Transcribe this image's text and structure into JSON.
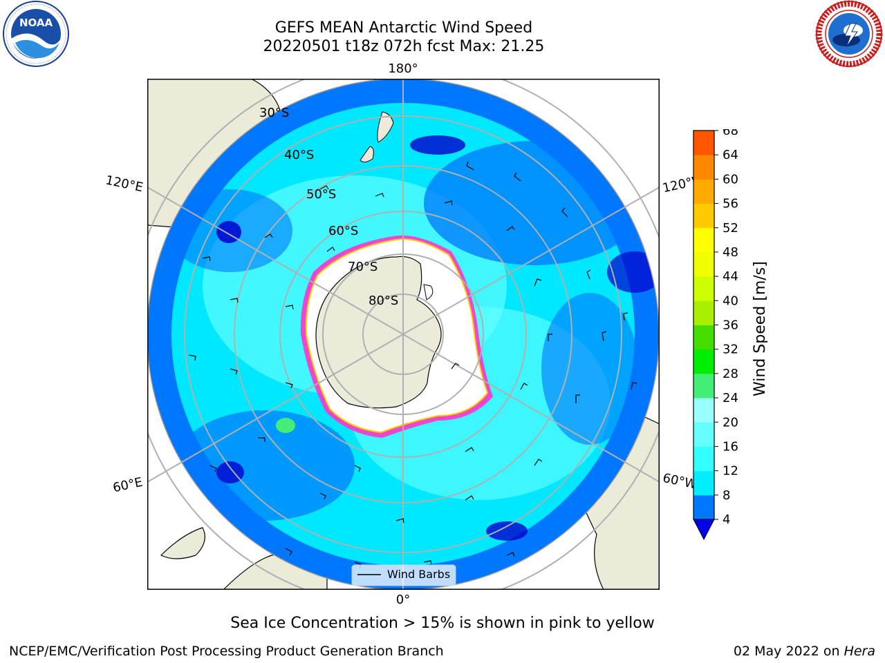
{
  "header": {
    "title_line1": "GEFS MEAN Antarctic Wind Speed",
    "title_line2": "20220501 t18z 072h fcst   Max: 21.25"
  },
  "logos": {
    "left": {
      "icon": "noaa-logo",
      "text": "NOAA",
      "ring_text": "NATIONAL OCEANIC AND ATMOSPHERIC ADMINISTRATION · U.S. DEPARTMENT OF COMMERCE"
    },
    "right": {
      "icon": "nws-logo",
      "ring_text": "NATIONAL WEATHER SERVICE"
    }
  },
  "map": {
    "projection": "south-polar-stereographic",
    "longitude_labels": {
      "top": "180°",
      "bottom": "0°",
      "upper_left": "120°E",
      "upper_right": "120°W",
      "lower_left": "60°E",
      "lower_right": "60°W"
    },
    "latitude_labels": [
      "30°S",
      "40°S",
      "50°S",
      "60°S",
      "70°S",
      "80°S"
    ],
    "legend_label": "Wind Barbs",
    "colors": {
      "land": "#ecebd9",
      "ocean_low": "#0077ff",
      "ocean_mid": "#00f0ff",
      "ocean_high": "#66ffff",
      "ice_edge": "#ff33cc",
      "antarctic_ice": "#ffffff"
    }
  },
  "colorbar": {
    "label": "Wind Speed [m/s]",
    "ticks": [
      "4",
      "8",
      "12",
      "16",
      "20",
      "24",
      "28",
      "32",
      "36",
      "40",
      "44",
      "48",
      "52",
      "56",
      "60",
      "64",
      "68"
    ],
    "colors": [
      "#0077ff",
      "#00eeff",
      "#33ffff",
      "#66ffff",
      "#99ffff",
      "#44ee77",
      "#00ee00",
      "#44dd00",
      "#aaee00",
      "#ccff00",
      "#eeff00",
      "#ffff00",
      "#ffcc00",
      "#ffaa00",
      "#ff8800",
      "#ff5500",
      "#ff2200",
      "#ff0000"
    ],
    "extend_color": "#0000ee"
  },
  "notes": {
    "sea_ice": "Sea Ice Concentration > 15% is shown in pink to yellow"
  },
  "footer": {
    "left": "NCEP/EMC/Verification Post Processing Product Generation Branch",
    "right_date": "02 May 2022 on",
    "right_host": "Hera"
  }
}
